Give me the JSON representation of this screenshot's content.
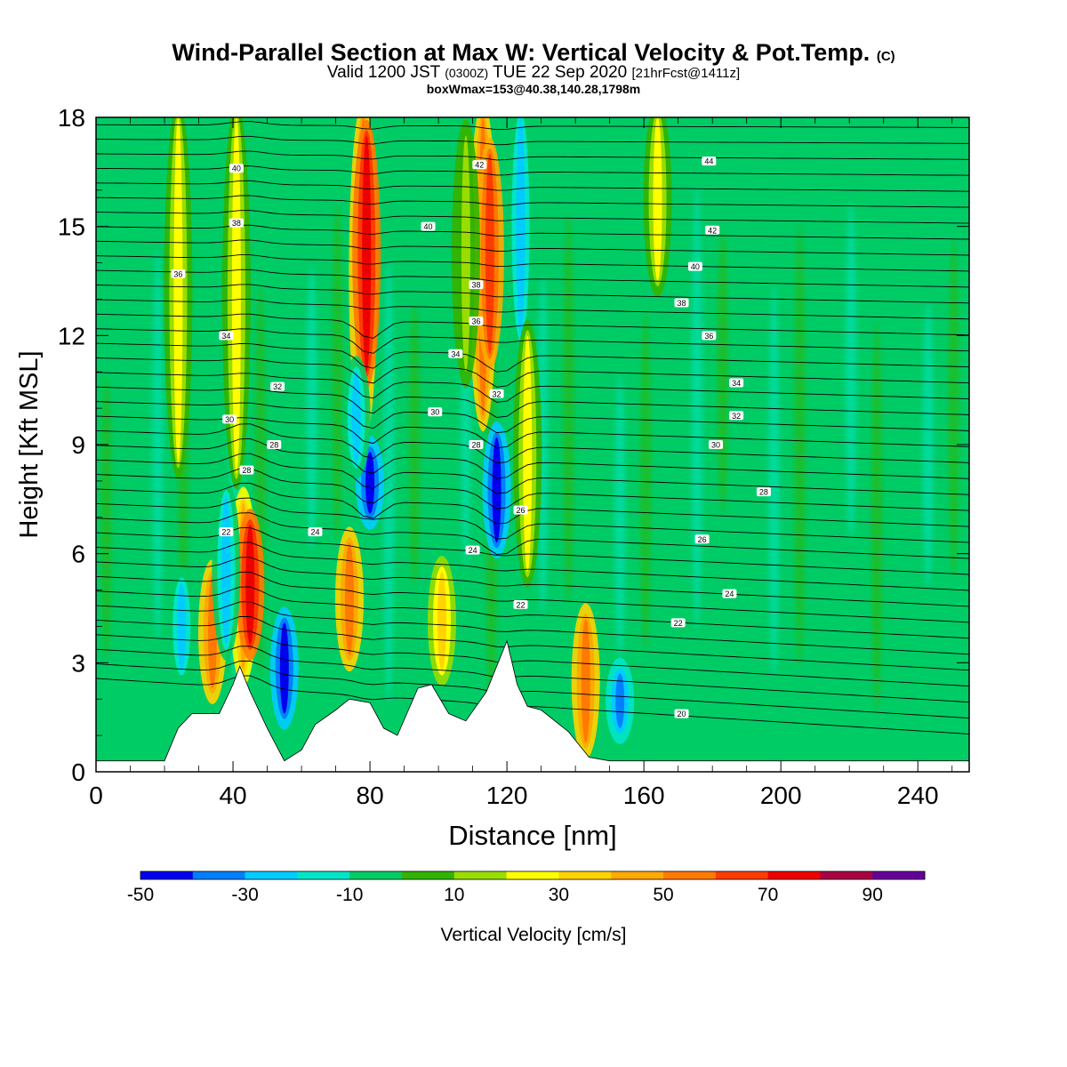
{
  "header": {
    "title": "Wind-Parallel Section at Max W: Vertical Velocity & Pot.Temp.",
    "title_mark": "(C)",
    "subtitle_a": "Valid 1200 JST",
    "subtitle_z": "(0300Z)",
    "subtitle_b": "TUE 22 Sep 2020",
    "subtitle_fcst": "[21hrFcst@1411z]",
    "boxline": "boxWmax=153@40.38,140.28,1798m"
  },
  "chart_data": {
    "type": "heatmap",
    "xlabel": "Distance [nm]",
    "ylabel": "Height [Kft MSL]",
    "xlim": [
      0,
      255
    ],
    "ylim": [
      0,
      18
    ],
    "x_ticks": [
      0,
      40,
      80,
      120,
      160,
      200,
      240
    ],
    "y_ticks": [
      0,
      3,
      6,
      9,
      12,
      15,
      18
    ],
    "background_class_index": 4,
    "colorbar": {
      "label": "Vertical Velocity [cm/s]",
      "levels": [
        -50,
        -40,
        -30,
        -20,
        -10,
        0,
        10,
        20,
        30,
        40,
        50,
        60,
        70,
        80,
        90,
        100
      ],
      "tick_labels": [
        "-50",
        "-30",
        "-10",
        "10",
        "30",
        "50",
        "70",
        "90"
      ],
      "colors": [
        "#0000ee",
        "#0080ff",
        "#00ccff",
        "#00e6c8",
        "#00cc66",
        "#33b400",
        "#99dd00",
        "#ffff00",
        "#ffd400",
        "#ffaa00",
        "#ff7a00",
        "#ff3c00",
        "#ee0000",
        "#aa0044",
        "#660099"
      ]
    },
    "w_features": [
      {
        "x": 24,
        "z0": 8.5,
        "z1": 18,
        "class": 7
      },
      {
        "x": 41,
        "z0": 8.2,
        "z1": 18,
        "class": 7
      },
      {
        "x": 43,
        "z0": 2.8,
        "z1": 7.4,
        "class": 9
      },
      {
        "x": 45,
        "z0": 3.5,
        "z1": 6.8,
        "class": 12
      },
      {
        "x": 34,
        "z0": 2.3,
        "z1": 5.4,
        "class": 10
      },
      {
        "x": 38,
        "z0": 3.5,
        "z1": 7.6,
        "class": 2
      },
      {
        "x": 25,
        "z0": 2.8,
        "z1": 5.2,
        "class": 2
      },
      {
        "x": 55,
        "z0": 1.6,
        "z1": 4.1,
        "class": 0
      },
      {
        "x": 74,
        "z0": 3.2,
        "z1": 6.3,
        "class": 10
      },
      {
        "x": 78,
        "z0": 9.4,
        "z1": 18,
        "class": 10
      },
      {
        "x": 79,
        "z0": 11,
        "z1": 17.5,
        "class": 12
      },
      {
        "x": 80,
        "z0": 7.1,
        "z1": 8.8,
        "class": 0
      },
      {
        "x": 76,
        "z0": 8.5,
        "z1": 11,
        "class": 2
      },
      {
        "x": 101,
        "z0": 2.8,
        "z1": 5.5,
        "class": 8
      },
      {
        "x": 113,
        "z0": 9.8,
        "z1": 18,
        "class": 10
      },
      {
        "x": 115,
        "z0": 11.5,
        "z1": 17,
        "class": 11
      },
      {
        "x": 117,
        "z0": 6.3,
        "z1": 9.2,
        "class": 0
      },
      {
        "x": 124,
        "z0": 12,
        "z1": 18,
        "class": 2
      },
      {
        "x": 126,
        "z0": 5.5,
        "z1": 12,
        "class": 7
      },
      {
        "x": 143,
        "z0": 0.8,
        "z1": 4.2,
        "class": 10
      },
      {
        "x": 153,
        "z0": 1.2,
        "z1": 2.7,
        "class": 1
      },
      {
        "x": 164,
        "z0": 13.5,
        "z1": 18,
        "class": 7
      },
      {
        "x": 108,
        "z0": 11,
        "z1": 17.5,
        "class": 6
      }
    ],
    "terrain": [
      {
        "x": 0,
        "z": 0.3
      },
      {
        "x": 20,
        "z": 0.3
      },
      {
        "x": 24,
        "z": 1.2
      },
      {
        "x": 28,
        "z": 1.6
      },
      {
        "x": 36,
        "z": 1.6
      },
      {
        "x": 40,
        "z": 2.4
      },
      {
        "x": 42,
        "z": 2.9
      },
      {
        "x": 45,
        "z": 2.2
      },
      {
        "x": 50,
        "z": 1.2
      },
      {
        "x": 55,
        "z": 0.3
      },
      {
        "x": 60,
        "z": 0.6
      },
      {
        "x": 64,
        "z": 1.3
      },
      {
        "x": 70,
        "z": 1.7
      },
      {
        "x": 74,
        "z": 2.0
      },
      {
        "x": 80,
        "z": 1.9
      },
      {
        "x": 84,
        "z": 1.2
      },
      {
        "x": 88,
        "z": 1.0
      },
      {
        "x": 94,
        "z": 2.3
      },
      {
        "x": 98,
        "z": 2.4
      },
      {
        "x": 103,
        "z": 1.6
      },
      {
        "x": 108,
        "z": 1.4
      },
      {
        "x": 114,
        "z": 2.2
      },
      {
        "x": 120,
        "z": 3.6
      },
      {
        "x": 123,
        "z": 2.4
      },
      {
        "x": 126,
        "z": 1.8
      },
      {
        "x": 130,
        "z": 1.7
      },
      {
        "x": 138,
        "z": 1.1
      },
      {
        "x": 144,
        "z": 0.4
      },
      {
        "x": 150,
        "z": 0.3
      },
      {
        "x": 255,
        "z": 0.3
      }
    ],
    "theta_labels": [
      {
        "x": 41,
        "z": 16.6,
        "text": "40"
      },
      {
        "x": 112,
        "z": 16.7,
        "text": "42"
      },
      {
        "x": 179,
        "z": 16.8,
        "text": "44"
      },
      {
        "x": 41,
        "z": 15.1,
        "text": "38"
      },
      {
        "x": 97,
        "z": 15.0,
        "text": "40"
      },
      {
        "x": 180,
        "z": 14.9,
        "text": "42"
      },
      {
        "x": 24,
        "z": 13.7,
        "text": "36"
      },
      {
        "x": 111,
        "z": 13.4,
        "text": "38"
      },
      {
        "x": 175,
        "z": 13.9,
        "text": "40"
      },
      {
        "x": 38,
        "z": 12.0,
        "text": "34"
      },
      {
        "x": 111,
        "z": 12.4,
        "text": "36"
      },
      {
        "x": 171,
        "z": 12.9,
        "text": "38"
      },
      {
        "x": 53,
        "z": 10.6,
        "text": "32"
      },
      {
        "x": 105,
        "z": 11.5,
        "text": "34"
      },
      {
        "x": 179,
        "z": 12.0,
        "text": "36"
      },
      {
        "x": 39,
        "z": 9.7,
        "text": "30"
      },
      {
        "x": 99,
        "z": 9.9,
        "text": "30"
      },
      {
        "x": 117,
        "z": 10.4,
        "text": "32"
      },
      {
        "x": 187,
        "z": 10.7,
        "text": "34"
      },
      {
        "x": 52,
        "z": 9.0,
        "text": "28"
      },
      {
        "x": 111,
        "z": 9.0,
        "text": "28"
      },
      {
        "x": 187,
        "z": 9.8,
        "text": "32"
      },
      {
        "x": 44,
        "z": 8.3,
        "text": "28"
      },
      {
        "x": 181,
        "z": 9.0,
        "text": "30"
      },
      {
        "x": 38,
        "z": 6.6,
        "text": "22"
      },
      {
        "x": 64,
        "z": 6.6,
        "text": "24"
      },
      {
        "x": 124,
        "z": 7.2,
        "text": "26"
      },
      {
        "x": 195,
        "z": 7.7,
        "text": "28"
      },
      {
        "x": 110,
        "z": 6.1,
        "text": "24"
      },
      {
        "x": 177,
        "z": 6.4,
        "text": "26"
      },
      {
        "x": 185,
        "z": 4.9,
        "text": "24"
      },
      {
        "x": 124,
        "z": 4.6,
        "text": "22"
      },
      {
        "x": 170,
        "z": 4.1,
        "text": "22"
      },
      {
        "x": 171,
        "z": 1.6,
        "text": "20"
      }
    ]
  }
}
